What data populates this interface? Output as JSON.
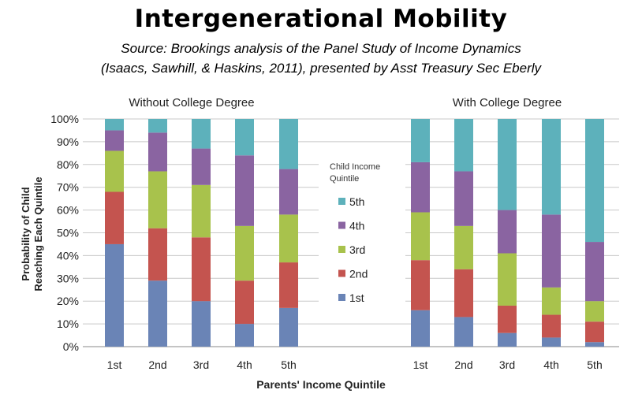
{
  "chart_data": {
    "type": "bar",
    "stacked": true,
    "title": "Intergenerational Mobility",
    "subtitle": [
      "Source: Brookings analysis of the Panel Study of Income Dynamics",
      "(Isaacs, Sawhill, & Haskins, 2011), presented by Asst Treasury Sec Eberly"
    ],
    "xlabel": "Parents' Income Quintile",
    "ylabel": [
      "Probability of Child",
      "Reaching Each Quintile"
    ],
    "ylim": [
      0,
      100
    ],
    "yticks": [
      "0%",
      "10%",
      "20%",
      "30%",
      "40%",
      "50%",
      "60%",
      "70%",
      "80%",
      "90%",
      "100%"
    ],
    "grid": true,
    "legend": {
      "title": [
        "Child Income",
        "Quintile"
      ],
      "placement": "center",
      "items": [
        "5th",
        "4th",
        "3rd",
        "2nd",
        "1st"
      ]
    },
    "categories": [
      "1st",
      "2nd",
      "3rd",
      "4th",
      "5th"
    ],
    "series_names": [
      "1st",
      "2nd",
      "3rd",
      "4th",
      "5th"
    ],
    "colors": [
      "#6a84b6",
      "#c4544f",
      "#a8c24c",
      "#8a64a1",
      "#5db1bb"
    ],
    "groups": [
      {
        "name": "Without College Degree",
        "values": [
          [
            45,
            23,
            18,
            9,
            5
          ],
          [
            29,
            23,
            25,
            17,
            6
          ],
          [
            20,
            28,
            23,
            16,
            13
          ],
          [
            10,
            19,
            24,
            31,
            16
          ],
          [
            17,
            20,
            21,
            20,
            22
          ]
        ]
      },
      {
        "name": "With College Degree",
        "values": [
          [
            16,
            22,
            21,
            22,
            19
          ],
          [
            13,
            21,
            19,
            24,
            23
          ],
          [
            6,
            12,
            23,
            19,
            40
          ],
          [
            4,
            10,
            12,
            32,
            42
          ],
          [
            2,
            9,
            9,
            26,
            54
          ]
        ]
      }
    ]
  }
}
